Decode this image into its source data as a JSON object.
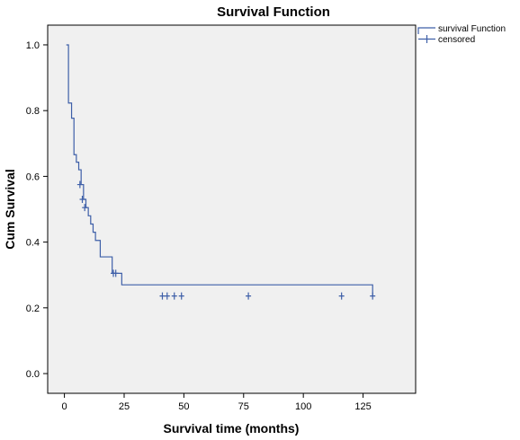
{
  "chart_data": {
    "type": "line",
    "title": "Survival Function",
    "xlabel": "Survival time (months)",
    "ylabel": "Cum Survival",
    "xlim": [
      -7,
      147
    ],
    "ylim": [
      -0.06,
      1.06
    ],
    "xticks": [
      0,
      25,
      50,
      75,
      100,
      125
    ],
    "xtick_labels": [
      "0",
      "25",
      "50",
      "75",
      "100",
      "125"
    ],
    "yticks": [
      0.0,
      0.2,
      0.4,
      0.6,
      0.8,
      1.0
    ],
    "ytick_labels": [
      "0.0",
      "0.2",
      "0.4",
      "0.6",
      "0.8",
      "1.0"
    ],
    "grid": false,
    "legend_position": "outside-top-right",
    "plot_background": "#f0f0f0",
    "line_color": "#3e5fa8",
    "series": [
      {
        "name": "survival Function",
        "kind": "step",
        "x": [
          0.8,
          1.7,
          3.0,
          4.0,
          5.0,
          6.0,
          7.0,
          8.0,
          9.0,
          10.0,
          11.0,
          12.0,
          13.0,
          15.0,
          20.0,
          22.0,
          24.0,
          129
        ],
        "y": [
          1.0,
          0.823,
          0.777,
          0.666,
          0.643,
          0.62,
          0.575,
          0.53,
          0.505,
          0.48,
          0.455,
          0.43,
          0.405,
          0.355,
          0.305,
          0.305,
          0.27,
          0.236
        ]
      },
      {
        "name": "censored",
        "kind": "censor-marks",
        "x": [
          6.5,
          7.5,
          8.5,
          20.5,
          21.5,
          41,
          43,
          46,
          49,
          77,
          116,
          129
        ],
        "y": [
          0.575,
          0.53,
          0.505,
          0.305,
          0.305,
          0.236,
          0.236,
          0.236,
          0.236,
          0.236,
          0.236,
          0.236
        ]
      }
    ]
  }
}
